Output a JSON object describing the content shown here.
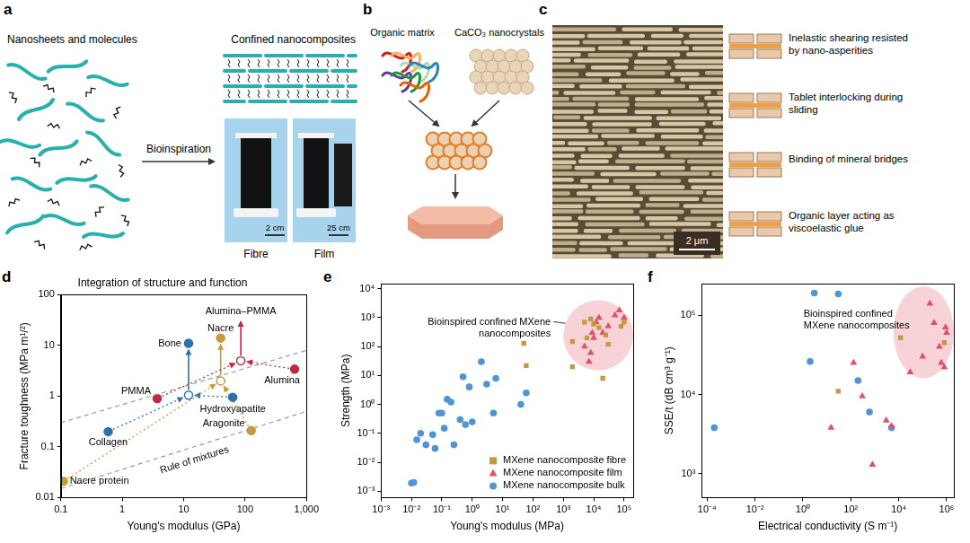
{
  "panels": {
    "a": {
      "letter": "a",
      "left_title": "Nanosheets and molecules",
      "arrow_label": "Bioinspiration",
      "right_title": "Confined nanocomposites",
      "photos": [
        {
          "caption": "Fibre",
          "scale_bar": "2 cm"
        },
        {
          "caption": "Film",
          "scale_bar": "25 cm"
        }
      ]
    },
    "b": {
      "letter": "b",
      "inputs": [
        "Organic matrix",
        "CaCO₃ nanocrystals"
      ]
    },
    "c": {
      "letter": "c",
      "scale_bar": "2 μm",
      "mechanisms": [
        "Inelastic shearing resisted by nano-asperities",
        "Tablet interlocking during sliding",
        "Binding of mineral bridges",
        "Organic layer acting as viscoelastic glue"
      ]
    }
  },
  "chart_data": [
    {
      "panel": "d",
      "type": "scatter",
      "title": "Integration of structure and function",
      "log": true,
      "grid": false,
      "x_label": "Young's modulus (GPa)",
      "y_label": "Fracture toughness (MPa m¹/²)",
      "xlim": [
        0.1,
        1000
      ],
      "xticks": [
        0.1,
        1,
        10,
        100,
        {
          "value": 1000,
          "label": "1,000"
        }
      ],
      "ylim": [
        0.01,
        100
      ],
      "yticks": [
        0.01,
        0.1,
        1,
        10,
        100
      ],
      "points": [
        {
          "label": "Nacre protein",
          "x": 0.11,
          "y": 0.021,
          "color": "#c99a3a",
          "marker": "circle"
        },
        {
          "label": "Collagen",
          "x": 0.59,
          "y": 0.2,
          "color": "#2b6fb0",
          "marker": "circle"
        },
        {
          "label": "PMMA",
          "x": 3.7,
          "y": 0.9,
          "color": "#c1273d",
          "marker": "circle"
        },
        {
          "label": "Hydroxyapatite",
          "x": 63,
          "y": 0.95,
          "color": "#2b6fb0",
          "marker": "circle"
        },
        {
          "label": "Aragonite",
          "x": 126,
          "y": 0.21,
          "color": "#c99a3a",
          "marker": "circle"
        },
        {
          "label": "Alumina",
          "x": 640,
          "y": 3.4,
          "color": "#c1273d",
          "marker": "circle"
        },
        {
          "label": "Bone",
          "x": 12,
          "y": 11,
          "color": "#2b6fb0",
          "marker": "circle"
        },
        {
          "label": "Nacre",
          "x": 40,
          "y": 14,
          "color": "#c99a3a",
          "marker": "circle"
        },
        {
          "x": 12,
          "y": 1.05,
          "color": "#2b6fb0",
          "marker": "open_circle"
        },
        {
          "x": 40,
          "y": 2,
          "color": "#c99a3a",
          "marker": "open_circle"
        },
        {
          "x": 85,
          "y": 5,
          "color": "#c1273d",
          "marker": "open_circle"
        }
      ],
      "lines": [
        {
          "x": [
            0.1,
            1000
          ],
          "y": [
            0.3,
            8
          ],
          "color": "#9a9a9a",
          "line_style": "dashed"
        },
        {
          "x": [
            0.1,
            1000
          ],
          "y": [
            0.015,
            0.5
          ],
          "color": "#9a9a9a",
          "line_style": "dashed"
        }
      ],
      "arrows": [
        {
          "from": [
            0.59,
            0.2
          ],
          "to": [
            12,
            1.05
          ],
          "color": "#2b6fb0",
          "line_style": "dotted"
        },
        {
          "from": [
            63,
            0.95
          ],
          "to": [
            12,
            1.05
          ],
          "color": "#2b6fb0",
          "line_style": "dotted"
        },
        {
          "from": [
            12,
            1.05
          ],
          "to": [
            12,
            11
          ],
          "color": "#2b6fb0",
          "line_style": "solid"
        },
        {
          "from": [
            0.11,
            0.021
          ],
          "to": [
            40,
            2
          ],
          "color": "#c99a3a",
          "line_style": "dotted"
        },
        {
          "from": [
            126,
            0.21
          ],
          "to": [
            40,
            2
          ],
          "color": "#c99a3a",
          "line_style": "dotted"
        },
        {
          "from": [
            40,
            2
          ],
          "to": [
            40,
            14
          ],
          "color": "#c99a3a",
          "line_style": "solid"
        },
        {
          "from": [
            3.7,
            0.9
          ],
          "to": [
            85,
            5
          ],
          "color": "#c1273d",
          "line_style": "dotted"
        },
        {
          "from": [
            640,
            3.4
          ],
          "to": [
            85,
            5
          ],
          "color": "#c1273d",
          "line_style": "dotted"
        },
        {
          "from": [
            85,
            5
          ],
          "to": [
            85,
            40
          ],
          "color": "#c1273d",
          "line_style": "solid",
          "label": "Alumina–PMMA"
        }
      ],
      "annotations": [
        {
          "text": "Rule of mixtures",
          "x": 15,
          "y": 0.055
        }
      ]
    },
    {
      "panel": "e",
      "type": "scatter",
      "log": true,
      "grid": false,
      "legend": "bottom right",
      "x_label": "Young's modulus (MPa)",
      "y_label": "Strength (MPa)",
      "xlim": [
        0.001,
        200000
      ],
      "xticks": [
        {
          "value": 0.001,
          "label": "10⁻³"
        },
        {
          "value": 0.01,
          "label": "10⁻²"
        },
        {
          "value": 0.1,
          "label": "10⁻¹"
        },
        {
          "value": 1,
          "label": "10⁰"
        },
        {
          "value": 10,
          "label": "10¹"
        },
        {
          "value": 100,
          "label": "10²"
        },
        {
          "value": 1000,
          "label": "10³"
        },
        {
          "value": 10000,
          "label": "10⁴"
        },
        {
          "value": 100000,
          "label": "10⁵"
        }
      ],
      "ylim": [
        0.0006,
        15000
      ],
      "yticks": [
        {
          "value": 0.001,
          "label": "10⁻³"
        },
        {
          "value": 0.01,
          "label": "10⁻²"
        },
        {
          "value": 0.1,
          "label": "10⁻¹"
        },
        {
          "value": 1,
          "label": "10⁰"
        },
        {
          "value": 10,
          "label": "10¹"
        },
        {
          "value": 100,
          "label": "10²"
        },
        {
          "value": 1000,
          "label": "10³"
        },
        {
          "value": 10000,
          "label": "10⁴"
        }
      ],
      "highlight": {
        "label": "Bioinspired confined MXene nanocomposites",
        "x": [
          1000,
          200000
        ],
        "y": [
          15,
          4000
        ]
      },
      "series": [
        {
          "name": "MXene nanocomposite fibre",
          "color": "#c49a3c",
          "marker": "square",
          "x": [
            50,
            60,
            2000,
            2000,
            5000,
            6000,
            8000,
            10000,
            15000,
            20000,
            25000,
            30000,
            80000,
            100000
          ],
          "values": [
            130,
            22,
            20,
            150,
            700,
            200,
            900,
            600,
            450,
            8,
            250,
            120,
            500,
            700
          ]
        },
        {
          "name": "MXene nanocomposite film",
          "color": "#e0506a",
          "marker": "triangle",
          "x": [
            5000,
            7000,
            8000,
            9000,
            10000,
            12000,
            15000,
            20000,
            30000,
            50000,
            70000,
            100000
          ],
          "values": [
            100,
            30,
            60,
            300,
            200,
            700,
            1000,
            300,
            500,
            1200,
            1800,
            1000
          ]
        },
        {
          "name": "MXene nanocomposite bulk",
          "color": "#4f94d4",
          "marker": "circle",
          "x": [
            0.01,
            0.012,
            0.015,
            0.02,
            0.03,
            0.05,
            0.06,
            0.08,
            0.1,
            0.12,
            0.15,
            0.2,
            0.25,
            0.4,
            0.5,
            0.6,
            0.8,
            1,
            2,
            3,
            5,
            6,
            40,
            60
          ],
          "values": [
            0.0019,
            0.002,
            0.06,
            0.1,
            0.04,
            0.09,
            0.03,
            0.5,
            0.5,
            0.15,
            1.5,
            1.2,
            0.04,
            0.3,
            9,
            0.2,
            4,
            0.25,
            30,
            5,
            0.5,
            8,
            1,
            2.5
          ]
        }
      ]
    },
    {
      "panel": "f",
      "type": "scatter",
      "log": true,
      "grid": false,
      "x_label": "Electrical conductivity (S m⁻¹)",
      "y_label": "SSE/t (dB cm³ g⁻¹)",
      "xlim": [
        6e-05,
        2000000
      ],
      "xticks": [
        {
          "value": 0.0001,
          "label": "10⁻⁴"
        },
        {
          "value": 0.01,
          "label": "10⁻²"
        },
        {
          "value": 1,
          "label": "10⁰"
        },
        {
          "value": 100,
          "label": "10²"
        },
        {
          "value": 10000,
          "label": "10⁴"
        },
        {
          "value": 1000000,
          "label": "10⁶"
        }
      ],
      "ylim": [
        500,
        250000
      ],
      "yticks": [
        {
          "value": 1000,
          "label": "10³"
        },
        {
          "value": 10000,
          "label": "10⁴"
        },
        {
          "value": 100000,
          "label": "10⁵"
        }
      ],
      "highlight": {
        "label": "Bioinspired confined MXene nanocomposites",
        "x": [
          6000,
          2000000
        ],
        "y": [
          16000,
          230000
        ]
      },
      "series": [
        {
          "color": "#c49a3c",
          "marker": "square",
          "x": [
            30,
            12000,
            800000
          ],
          "values": [
            11000,
            52000,
            45000
          ]
        },
        {
          "color": "#e0506a",
          "marker": "triangle",
          "x": [
            15,
            130,
            300,
            800,
            3000,
            5000,
            30000,
            100000,
            200000,
            300000,
            500000,
            600000,
            800000,
            900000,
            1000000
          ],
          "values": [
            3800,
            25000,
            9500,
            1300,
            4700,
            4000,
            19000,
            30000,
            140000,
            80000,
            40000,
            25000,
            22000,
            70000,
            60000
          ]
        },
        {
          "color": "#4f94d4",
          "marker": "circle",
          "x": [
            0.0002,
            2,
            3,
            30,
            200,
            600,
            5000
          ],
          "values": [
            3800,
            26000,
            190000,
            185000,
            15000,
            6000,
            3800
          ]
        }
      ]
    }
  ]
}
